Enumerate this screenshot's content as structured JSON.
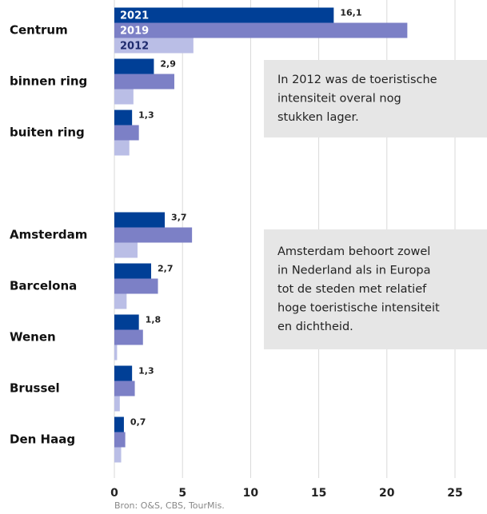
{
  "chart_data": {
    "type": "bar",
    "orientation": "horizontal",
    "categories": [
      "Centrum",
      "binnen ring",
      "buiten ring",
      null,
      "Amsterdam",
      "Barcelona",
      "Wenen",
      "Brussel",
      "Den Haag"
    ],
    "series": [
      {
        "name": "2021",
        "color": "#003f96",
        "values": [
          16.1,
          2.9,
          1.3,
          null,
          3.7,
          2.7,
          1.8,
          1.3,
          0.7
        ],
        "value_labels": [
          "16,1",
          "2,9",
          "1,3",
          null,
          "3,7",
          "2,7",
          "1,8",
          "1,3",
          "0,7"
        ]
      },
      {
        "name": "2019",
        "color": "#7c80c6",
        "values": [
          21.5,
          4.4,
          1.8,
          null,
          5.7,
          3.2,
          2.1,
          1.5,
          0.8
        ]
      },
      {
        "name": "2012",
        "color": "#babee6",
        "values": [
          5.8,
          1.4,
          1.1,
          null,
          1.7,
          0.9,
          0.2,
          0.4,
          0.5
        ]
      }
    ],
    "xlim": [
      0,
      25
    ],
    "xticks": [
      0,
      5,
      10,
      15,
      20,
      25
    ],
    "grid": true,
    "annotations": [
      {
        "lines": [
          "In 2012 was de toeristische",
          "intensiteit overal nog",
          "stukken lager."
        ]
      },
      {
        "lines": [
          "Amsterdam behoort zowel",
          "in Nederland als in Europa",
          "tot de steden met relatief",
          "hoge toeristische intensiteit",
          "en dichtheid."
        ]
      }
    ],
    "source": "Bron: O&S, CBS, TourMis."
  }
}
